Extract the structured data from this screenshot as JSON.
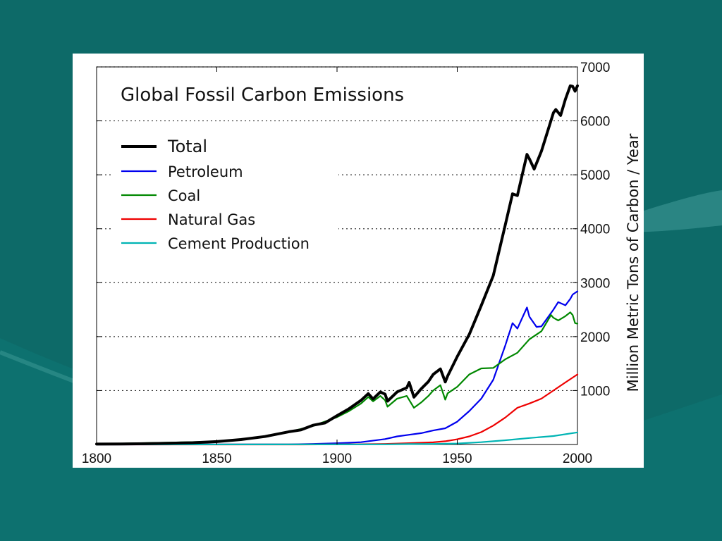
{
  "chart_data": {
    "type": "line",
    "title": "Global Fossil Carbon Emissions",
    "xlabel": "",
    "ylabel": "Million Metric Tons of Carbon / Year",
    "xlim": [
      1800,
      2000
    ],
    "ylim": [
      0,
      7000
    ],
    "x_ticks": [
      "1800",
      "1850",
      "1900",
      "1950",
      "2000"
    ],
    "y_ticks": [
      "1000",
      "2000",
      "3000",
      "4000",
      "5000",
      "6000",
      "7000"
    ],
    "grid": "horizontal dotted",
    "legend_position": "top-left",
    "colors": {
      "Total": "#000000",
      "Petroleum": "#0000ee",
      "Coal": "#008800",
      "Natural Gas": "#ee0000",
      "Cement Production": "#00b4b4"
    },
    "series": [
      {
        "name": "Total",
        "x": [
          1800,
          1810,
          1820,
          1830,
          1840,
          1850,
          1860,
          1870,
          1880,
          1885,
          1890,
          1895,
          1900,
          1905,
          1910,
          1913,
          1915,
          1918,
          1920,
          1921,
          1925,
          1929,
          1930,
          1932,
          1935,
          1938,
          1940,
          1943,
          1945,
          1946,
          1950,
          1955,
          1960,
          1965,
          1970,
          1973,
          1975,
          1979,
          1980,
          1982,
          1985,
          1990,
          1991,
          1993,
          1995,
          1997,
          1998,
          1999,
          2000
        ],
        "y": [
          8,
          10,
          14,
          24,
          33,
          54,
          91,
          147,
          236,
          270,
          356,
          400,
          534,
          663,
          819,
          943,
          845,
          973,
          932,
          803,
          975,
          1053,
          1150,
          878,
          1033,
          1166,
          1299,
          1401,
          1160,
          1269,
          1630,
          2043,
          2577,
          3130,
          4076,
          4646,
          4615,
          5378,
          5297,
          5106,
          5438,
          6150,
          6210,
          6100,
          6400,
          6650,
          6640,
          6550,
          6650
        ]
      },
      {
        "name": "Petroleum",
        "x": [
          1800,
          1870,
          1880,
          1890,
          1900,
          1910,
          1920,
          1925,
          1930,
          1935,
          1940,
          1945,
          1950,
          1955,
          1960,
          1965,
          1970,
          1973,
          1975,
          1979,
          1980,
          1983,
          1985,
          1990,
          1992,
          1995,
          1997,
          1998,
          2000
        ],
        "y": [
          0,
          1,
          3,
          10,
          23,
          43,
          100,
          150,
          180,
          210,
          260,
          300,
          423,
          620,
          850,
          1200,
          1839,
          2250,
          2150,
          2540,
          2370,
          2180,
          2190,
          2500,
          2640,
          2580,
          2700,
          2780,
          2840
        ]
      },
      {
        "name": "Coal",
        "x": [
          1800,
          1850,
          1870,
          1880,
          1890,
          1900,
          1905,
          1910,
          1913,
          1915,
          1918,
          1920,
          1921,
          1925,
          1929,
          1932,
          1935,
          1938,
          1940,
          1943,
          1945,
          1946,
          1950,
          1955,
          1960,
          1965,
          1970,
          1975,
          1980,
          1985,
          1989,
          1990,
          1992,
          1995,
          1997,
          1998,
          1999,
          2000
        ],
        "y": [
          8,
          54,
          146,
          233,
          344,
          507,
          620,
          760,
          880,
          800,
          900,
          820,
          700,
          850,
          900,
          680,
          780,
          900,
          1000,
          1100,
          830,
          950,
          1070,
          1300,
          1410,
          1420,
          1580,
          1700,
          1950,
          2100,
          2400,
          2350,
          2300,
          2380,
          2450,
          2400,
          2250,
          2240
        ]
      },
      {
        "name": "Natural Gas",
        "x": [
          1800,
          1885,
          1900,
          1910,
          1920,
          1930,
          1940,
          1945,
          1950,
          1955,
          1960,
          1965,
          1970,
          1975,
          1980,
          1985,
          1990,
          1995,
          2000
        ],
        "y": [
          0,
          0,
          2,
          5,
          10,
          25,
          40,
          60,
          97,
          150,
          230,
          350,
          500,
          680,
          760,
          850,
          1000,
          1150,
          1300
        ]
      },
      {
        "name": "Cement Production",
        "x": [
          1800,
          1920,
          1930,
          1940,
          1950,
          1960,
          1970,
          1980,
          1990,
          2000
        ],
        "y": [
          0,
          3,
          8,
          10,
          18,
          43,
          78,
          120,
          157,
          225
        ]
      }
    ]
  }
}
